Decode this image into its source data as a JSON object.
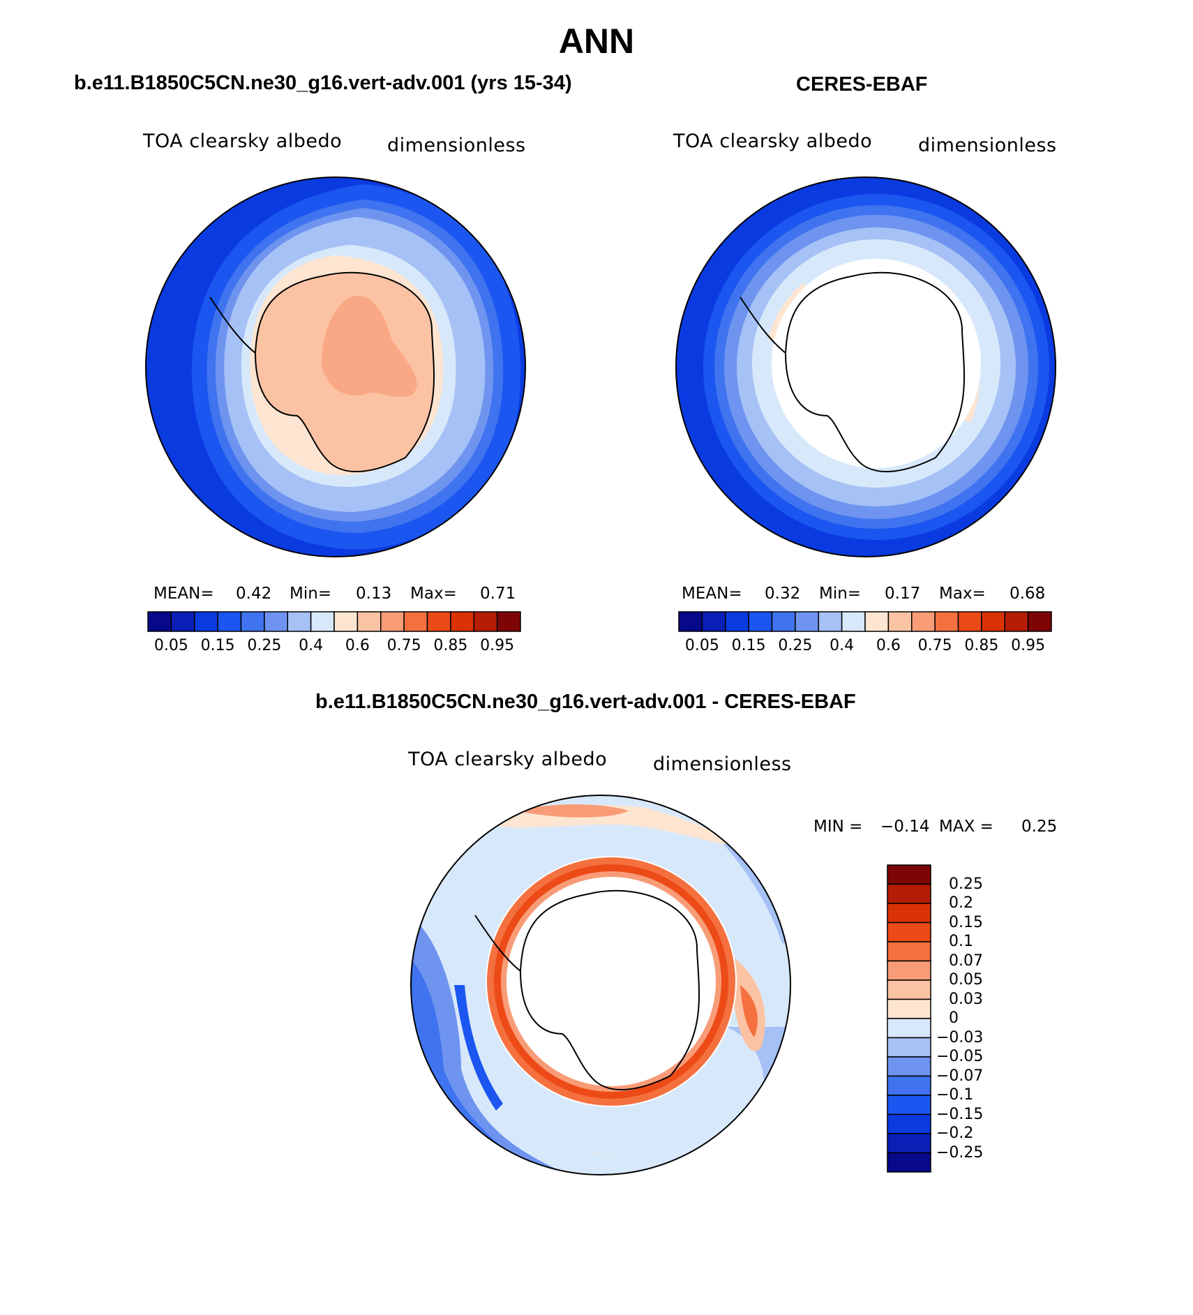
{
  "title": "ANN",
  "panels": [
    {
      "id": "model",
      "title": "b.e11.B1850C5CN.ne30_g16.vert-adv.001 (yrs 15-34)",
      "variable": "TOA clearsky albedo",
      "units": "dimensionless",
      "stats": {
        "mean_label": "MEAN=",
        "mean": "0.42",
        "min_label": "Min=",
        "min": "0.13",
        "max_label": "Max=",
        "max": "0.71"
      }
    },
    {
      "id": "obs",
      "title": "CERES-EBAF",
      "variable": "TOA clearsky albedo",
      "units": "dimensionless",
      "stats": {
        "mean_label": "MEAN=",
        "mean": "0.32",
        "min_label": "Min=",
        "min": "0.17",
        "max_label": "Max=",
        "max": "0.68"
      }
    }
  ],
  "colorbar_abs": {
    "colors": [
      "#08088a",
      "#0a1fb5",
      "#0a3be0",
      "#1b56f0",
      "#3f73ef",
      "#6e94f0",
      "#a6c1f5",
      "#d8e8fb",
      "#fde5d1",
      "#fbc3a3",
      "#f89c77",
      "#f4703f",
      "#ec4a17",
      "#d93305",
      "#b51d06",
      "#7e0505"
    ],
    "tick_labels": [
      "0.05",
      "0.15",
      "0.25",
      "0.4",
      "0.6",
      "0.75",
      "0.85",
      "0.95"
    ]
  },
  "difference": {
    "title": "b.e11.B1850C5CN.ne30_g16.vert-adv.001 - CERES-EBAF",
    "variable": "TOA clearsky albedo",
    "units": "dimensionless",
    "stats": {
      "min_label": "MIN =",
      "min": "−0.14",
      "max_label": "MAX =",
      "max": "0.25"
    },
    "colorbar": {
      "colors": [
        "#7e0505",
        "#b51d06",
        "#d93305",
        "#ec4a17",
        "#f4703f",
        "#f89c77",
        "#fbc3a3",
        "#fde5d1",
        "#d8e8fb",
        "#a6c1f5",
        "#6e94f0",
        "#3f73ef",
        "#1b56f0",
        "#0a3be0",
        "#0a1fb5",
        "#08088a"
      ],
      "tick_labels": [
        "0.25",
        "0.2",
        "0.15",
        "0.1",
        "0.07",
        "0.05",
        "0.03",
        "0",
        "−0.03",
        "−0.05",
        "−0.07",
        "−0.1",
        "−0.15",
        "−0.2",
        "−0.25"
      ]
    }
  }
}
